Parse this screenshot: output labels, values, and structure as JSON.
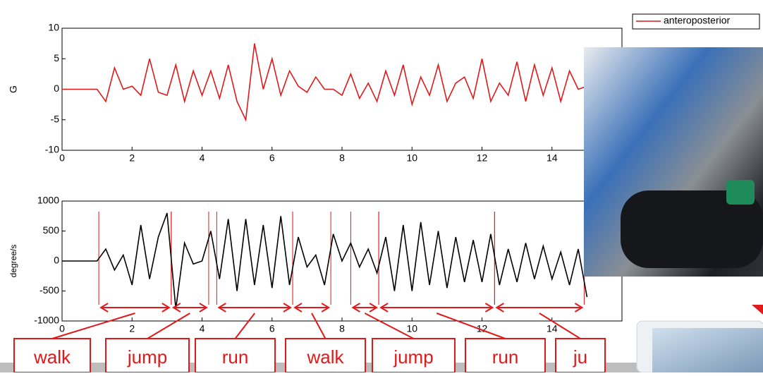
{
  "chart_data": [
    {
      "type": "line",
      "ylabel": "G",
      "xlim": [
        0,
        16
      ],
      "ylim": [
        -10,
        10
      ],
      "xticks": [
        0,
        2,
        4,
        6,
        8,
        10,
        12,
        14
      ],
      "yticks": [
        -10,
        -5,
        0,
        5,
        10
      ],
      "x": [
        0,
        0.25,
        0.5,
        0.75,
        1,
        1.25,
        1.5,
        1.75,
        2,
        2.25,
        2.5,
        2.75,
        3,
        3.25,
        3.5,
        3.75,
        4,
        4.25,
        4.5,
        4.75,
        5,
        5.25,
        5.5,
        5.75,
        6,
        6.25,
        6.5,
        6.75,
        7,
        7.25,
        7.5,
        7.75,
        8,
        8.25,
        8.5,
        8.75,
        9,
        9.25,
        9.5,
        9.75,
        10,
        10.25,
        10.5,
        10.75,
        11,
        11.25,
        11.5,
        11.75,
        12,
        12.25,
        12.5,
        12.75,
        13,
        13.25,
        13.5,
        13.75,
        14,
        14.25,
        14.5,
        14.75,
        15
      ],
      "series": [
        {
          "name": "anteroposterior",
          "color": "#e0191a",
          "values": [
            0,
            0,
            0,
            0,
            0,
            -2,
            3.5,
            0,
            0.5,
            -1,
            5,
            -0.5,
            -1,
            4,
            -2,
            3,
            -1,
            3,
            -1.5,
            4,
            -2,
            -5,
            7.5,
            0,
            5,
            -1,
            3,
            0.5,
            -0.5,
            2,
            0,
            0,
            -1,
            2.5,
            -1.5,
            1,
            -2,
            3,
            -1,
            4,
            -2.5,
            2,
            -1,
            4,
            -2,
            1,
            2,
            -1.5,
            5,
            -2,
            1,
            -1,
            4.5,
            -2,
            4,
            -1,
            3.5,
            -2,
            3,
            0,
            0.5
          ]
        }
      ]
    },
    {
      "type": "line",
      "ylabel": "degree/s",
      "xlim": [
        0,
        16
      ],
      "ylim": [
        -1000,
        1000
      ],
      "xticks": [
        0,
        2,
        4,
        6,
        8,
        10,
        12,
        14
      ],
      "yticks": [
        -1000,
        -500,
        0,
        500,
        1000
      ],
      "x": [
        0,
        0.25,
        0.5,
        0.75,
        1,
        1.25,
        1.5,
        1.75,
        2,
        2.25,
        2.5,
        2.75,
        3,
        3.25,
        3.5,
        3.75,
        4,
        4.25,
        4.5,
        4.75,
        5,
        5.25,
        5.5,
        5.75,
        6,
        6.25,
        6.5,
        6.75,
        7,
        7.25,
        7.5,
        7.75,
        8,
        8.25,
        8.5,
        8.75,
        9,
        9.25,
        9.5,
        9.75,
        10,
        10.25,
        10.5,
        10.75,
        11,
        11.25,
        11.5,
        11.75,
        12,
        12.25,
        12.5,
        12.75,
        13,
        13.25,
        13.5,
        13.75,
        14,
        14.25,
        14.5,
        14.75,
        15
      ],
      "series": [
        {
          "color": "#000000",
          "values": [
            0,
            0,
            0,
            0,
            0,
            200,
            -150,
            100,
            -400,
            600,
            -300,
            400,
            800,
            -800,
            300,
            -50,
            0,
            500,
            -300,
            700,
            -500,
            700,
            -400,
            600,
            -450,
            750,
            -400,
            400,
            -100,
            100,
            -400,
            450,
            0,
            300,
            -100,
            200,
            -200,
            400,
            -500,
            600,
            -500,
            650,
            -400,
            500,
            -450,
            400,
            -350,
            350,
            -350,
            450,
            -400,
            200,
            -350,
            300,
            -300,
            250,
            -300,
            150,
            -400,
            200,
            -600
          ]
        }
      ],
      "segments": [
        {
          "label": "walk",
          "start": 1.05,
          "end": 3.12
        },
        {
          "label": "jump",
          "start": 3.12,
          "end": 4.19
        },
        {
          "label": "run",
          "start": 4.42,
          "end": 6.59
        },
        {
          "label": "walk",
          "start": 6.59,
          "end": 7.68
        },
        {
          "label": "jump",
          "start": 8.25,
          "end": 9.05
        },
        {
          "label": "run",
          "start": 9.05,
          "end": 12.36
        },
        {
          "label": "ju",
          "start": 12.36,
          "end": 14.92
        }
      ]
    }
  ]
}
